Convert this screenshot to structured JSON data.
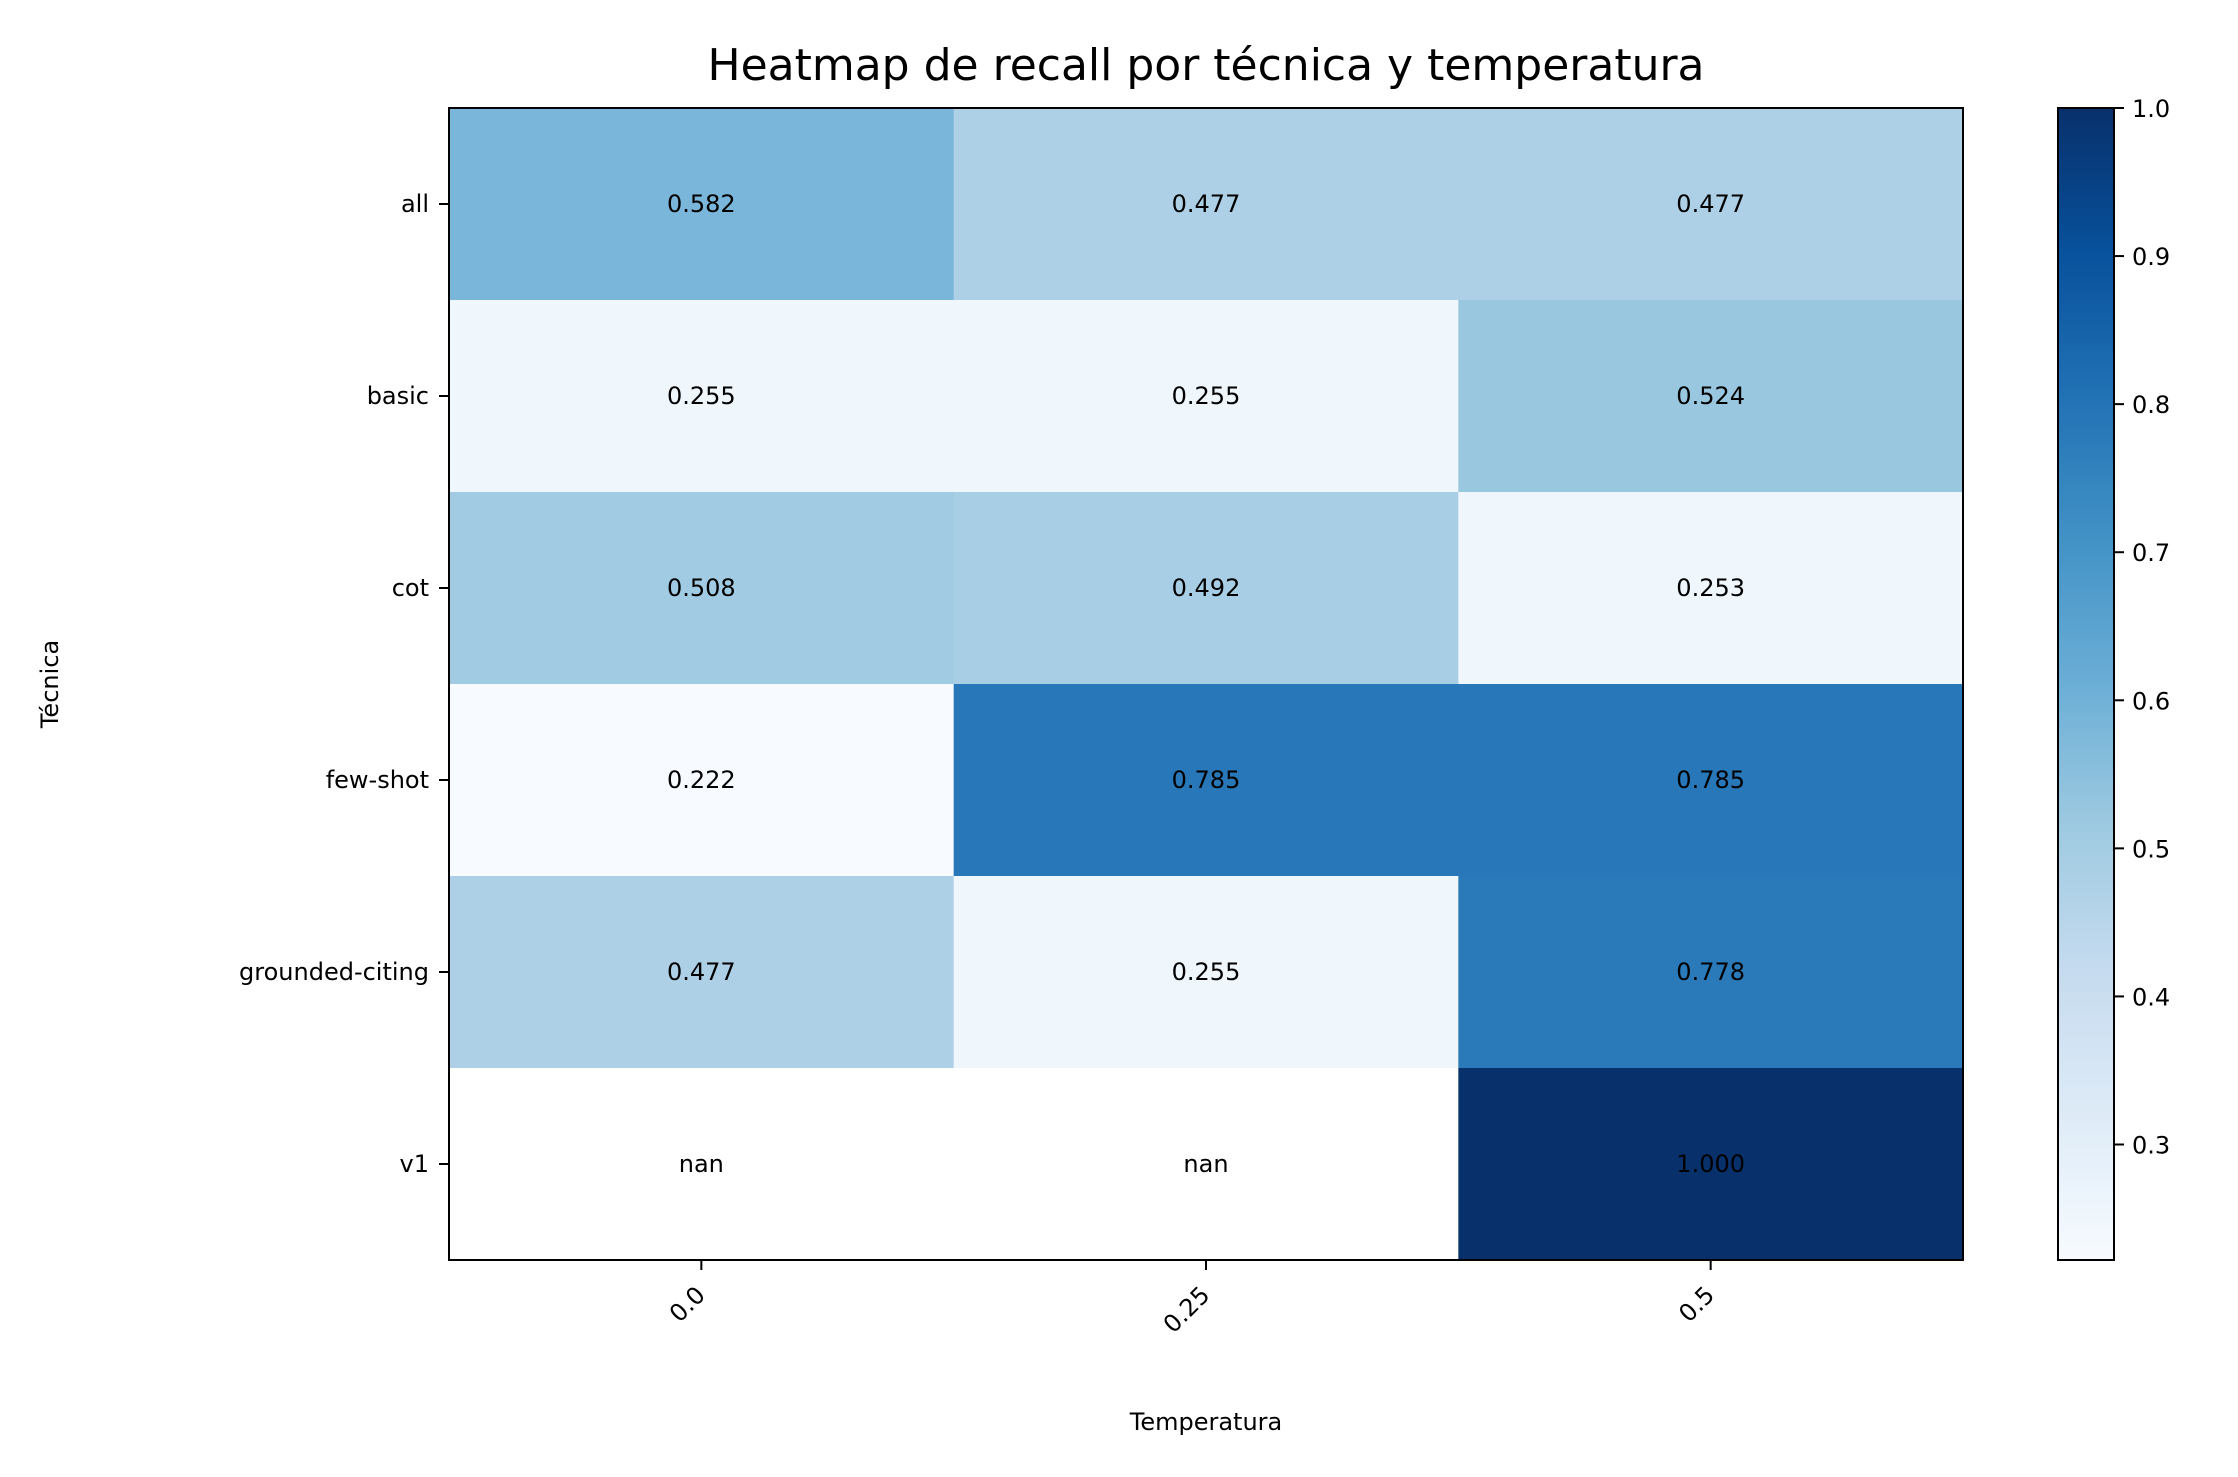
{
  "chart_data": {
    "type": "heatmap",
    "title": "Heatmap de recall por técnica y temperatura",
    "xlabel": "Temperatura",
    "ylabel": "Técnica",
    "x_categories": [
      "0.0",
      "0.25",
      "0.5"
    ],
    "y_categories": [
      "all",
      "basic",
      "cot",
      "few-shot",
      "grounded-citing",
      "v1"
    ],
    "values": [
      [
        0.582,
        0.477,
        0.477
      ],
      [
        0.255,
        0.255,
        0.524
      ],
      [
        0.508,
        0.492,
        0.253
      ],
      [
        0.222,
        0.785,
        0.785
      ],
      [
        0.477,
        0.255,
        0.778
      ],
      [
        null,
        null,
        1.0
      ]
    ],
    "cell_labels": [
      [
        "0.582",
        "0.477",
        "0.477"
      ],
      [
        "0.255",
        "0.255",
        "0.524"
      ],
      [
        "0.508",
        "0.492",
        "0.253"
      ],
      [
        "0.222",
        "0.785",
        "0.785"
      ],
      [
        "0.477",
        "0.255",
        "0.778"
      ],
      [
        "nan",
        "nan",
        "1.000"
      ]
    ],
    "colormap": "Blues",
    "colorbar": {
      "min": 0.222,
      "max": 1.0,
      "ticks": [
        "0.3",
        "0.4",
        "0.5",
        "0.6",
        "0.7",
        "0.8",
        "0.9",
        "1.0"
      ]
    },
    "nan_color": "#ffffff",
    "grid": false
  }
}
